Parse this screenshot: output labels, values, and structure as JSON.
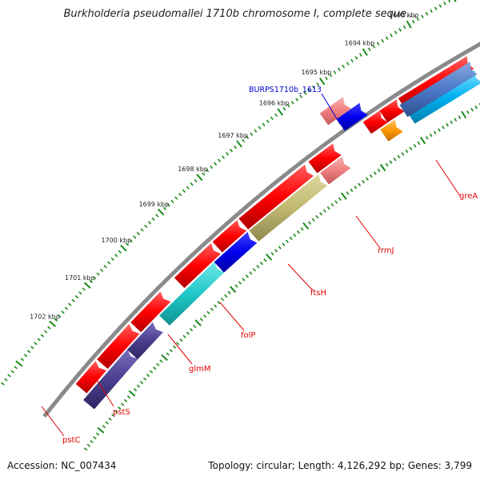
{
  "title": "Burkholderia pseudomallei 1710b chromosome I, complete seque...",
  "footer": {
    "accession": "Accession: NC_007434",
    "summary": "Topology: circular; Length: 4,126,292 bp; Genes: 3,799"
  },
  "ruler": [
    "1693 kbp",
    "1694 kbp",
    "1695 kbp",
    "1696 kbp",
    "1697 kbp",
    "1698 kbp",
    "1699 kbp",
    "1700 kbp",
    "1701 kbp",
    "1702 kbp"
  ],
  "gene_labels": [
    "greA",
    "rrmJ",
    "ftsH",
    "folP",
    "glmM",
    "pstS",
    "pstC"
  ],
  "locus_labels": [
    "BURPS1710b_1613"
  ],
  "colors": {
    "backbone": "#8a8a8a",
    "gene_forward": "#ff0000",
    "gene_pink": "#f08080",
    "cds_blue": "#0000ee",
    "cds_cyan": "#20c8c8",
    "cds_navy": "#4a3f8f",
    "cds_olive": "#c0b870",
    "cds_orange": "#ff9900",
    "cds_lightblue": "#00b0f0",
    "cds_steel": "#4b79c8",
    "tick_green": "#1a8a1a",
    "label_red": "#e00000",
    "locus_blue": "#0000cc"
  }
}
